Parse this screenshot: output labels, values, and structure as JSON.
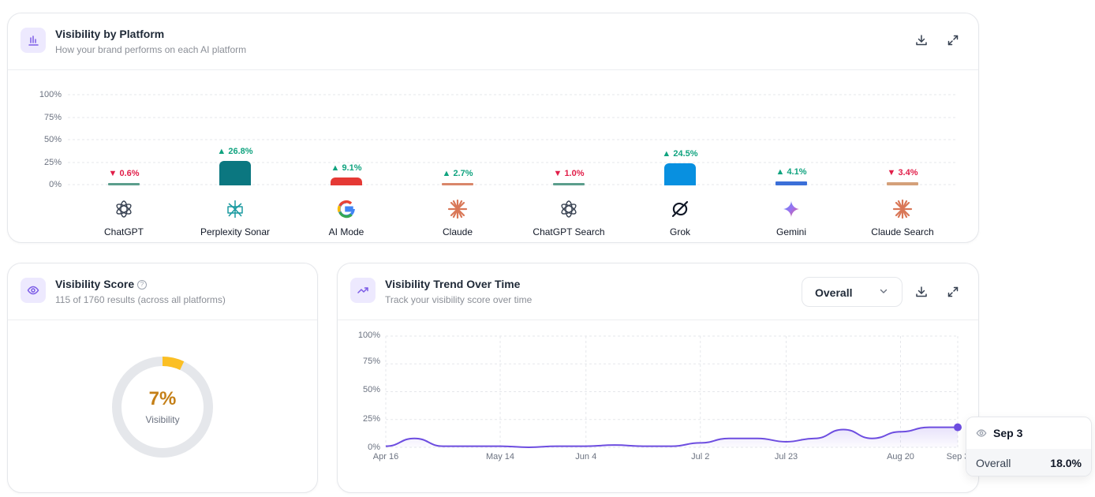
{
  "platform_card": {
    "title": "Visibility by Platform",
    "subtitle": "How your brand performs on each AI platform",
    "y_ticks": [
      "100%",
      "75%",
      "50%",
      "25%",
      "0%"
    ],
    "platforms": [
      {
        "name": "ChatGPT",
        "icon": "openai-icon",
        "value": 0.6,
        "delta_label": "0.6%",
        "direction": "down",
        "color": "#5b9e8c"
      },
      {
        "name": "Perplexity Sonar",
        "icon": "perplexity-icon",
        "value": 26.8,
        "delta_label": "26.8%",
        "direction": "up",
        "color": "#0b7780"
      },
      {
        "name": "AI Mode",
        "icon": "google-icon",
        "value": 9.1,
        "delta_label": "9.1%",
        "direction": "up",
        "color": "#e53935"
      },
      {
        "name": "Claude",
        "icon": "claude-icon",
        "value": 2.7,
        "delta_label": "2.7%",
        "direction": "up",
        "color": "#d9876a"
      },
      {
        "name": "ChatGPT Search",
        "icon": "openai-icon",
        "value": 1.0,
        "delta_label": "1.0%",
        "direction": "down",
        "color": "#5b9e8c"
      },
      {
        "name": "Grok",
        "icon": "grok-icon",
        "value": 24.5,
        "delta_label": "24.5%",
        "direction": "up",
        "color": "#0890e0"
      },
      {
        "name": "Gemini",
        "icon": "gemini-icon",
        "value": 4.1,
        "delta_label": "4.1%",
        "direction": "up",
        "color": "#3b6fd8"
      },
      {
        "name": "Claude Search",
        "icon": "claude-icon",
        "value": 3.4,
        "delta_label": "3.4%",
        "direction": "down",
        "color": "#d4a07a"
      }
    ]
  },
  "score_card": {
    "title": "Visibility Score",
    "subtitle": "115 of 1760 results (across all platforms)",
    "value": 7,
    "value_label": "7%",
    "caption": "Visibility",
    "accent": "#fbbf24"
  },
  "trend_card": {
    "title": "Visibility Trend Over Time",
    "subtitle": "Track your visibility score over time",
    "dropdown_value": "Overall",
    "y_ticks": [
      "100%",
      "75%",
      "50%",
      "25%",
      "0%"
    ],
    "x_ticks": [
      "Apr 16",
      "May 14",
      "Jun 4",
      "Jul 2",
      "Jul 23",
      "Aug 20",
      "Sep 3"
    ],
    "tooltip": {
      "date": "Sep 3",
      "series": "Overall",
      "value": "18.0%"
    },
    "line_color": "#6d4de0"
  },
  "chart_data": [
    {
      "type": "bar",
      "title": "Visibility by Platform",
      "categories": [
        "ChatGPT",
        "Perplexity Sonar",
        "AI Mode",
        "Claude",
        "ChatGPT Search",
        "Grok",
        "Gemini",
        "Claude Search"
      ],
      "values": [
        0.6,
        26.8,
        9.1,
        2.7,
        1.0,
        24.5,
        4.1,
        3.4
      ],
      "ylim": [
        0,
        100
      ],
      "grid": true
    },
    {
      "type": "area",
      "title": "Visibility Trend Over Time",
      "x": [
        "Apr 16",
        "Apr 23",
        "Apr 30",
        "May 7",
        "May 14",
        "May 21",
        "May 28",
        "Jun 4",
        "Jun 11",
        "Jun 18",
        "Jun 25",
        "Jul 2",
        "Jul 9",
        "Jul 16",
        "Jul 23",
        "Jul 30",
        "Aug 6",
        "Aug 13",
        "Aug 20",
        "Aug 27",
        "Sep 3"
      ],
      "series": [
        {
          "name": "Overall",
          "values": [
            1,
            8,
            1,
            1,
            1,
            0,
            1,
            1,
            2,
            1,
            1,
            4,
            8,
            8,
            5,
            8,
            16,
            8,
            14,
            18,
            18
          ]
        }
      ],
      "ylim": [
        0,
        100
      ],
      "grid": true
    }
  ]
}
